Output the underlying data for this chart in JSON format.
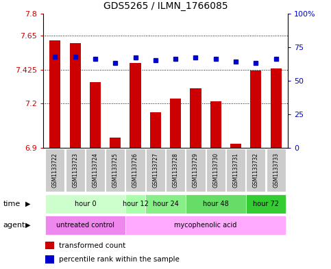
{
  "title": "GDS5265 / ILMN_1766085",
  "samples": [
    "GSM1133722",
    "GSM1133723",
    "GSM1133724",
    "GSM1133725",
    "GSM1133726",
    "GSM1133727",
    "GSM1133728",
    "GSM1133729",
    "GSM1133730",
    "GSM1133731",
    "GSM1133732",
    "GSM1133733"
  ],
  "red_values": [
    7.62,
    7.6,
    7.34,
    6.97,
    7.47,
    7.14,
    7.23,
    7.3,
    7.21,
    6.93,
    7.42,
    7.43
  ],
  "blue_values": [
    68,
    68,
    66,
    63,
    67,
    65,
    66,
    67,
    66,
    64,
    63,
    66
  ],
  "ylim_left": [
    6.9,
    7.8
  ],
  "ylim_right": [
    0,
    100
  ],
  "yticks_left": [
    6.9,
    7.2,
    7.425,
    7.65,
    7.8
  ],
  "ytick_labels_left": [
    "6.9",
    "7.2",
    "7.425",
    "7.65",
    "7.8"
  ],
  "yticks_right": [
    0,
    25,
    50,
    75,
    100
  ],
  "ytick_labels_right": [
    "0",
    "25",
    "50",
    "75",
    "100%"
  ],
  "hlines": [
    7.2,
    7.425,
    7.65
  ],
  "bar_color": "#cc0000",
  "dot_color": "#0000cc",
  "bar_bottom": 6.9,
  "time_groups": [
    {
      "label": "hour 0",
      "start": 0,
      "end": 3,
      "color": "#ccffcc"
    },
    {
      "label": "hour 12",
      "start": 4,
      "end": 4,
      "color": "#aaffaa"
    },
    {
      "label": "hour 24",
      "start": 5,
      "end": 6,
      "color": "#88ee88"
    },
    {
      "label": "hour 48",
      "start": 7,
      "end": 9,
      "color": "#66dd66"
    },
    {
      "label": "hour 72",
      "start": 10,
      "end": 11,
      "color": "#33cc33"
    }
  ],
  "agent_groups": [
    {
      "label": "untreated control",
      "start": 0,
      "end": 3,
      "color": "#ee88ee"
    },
    {
      "label": "mycophenolic acid",
      "start": 4,
      "end": 11,
      "color": "#ffaaff"
    }
  ],
  "legend_red": "transformed count",
  "legend_blue": "percentile rank within the sample",
  "xlabel_time": "time",
  "xlabel_agent": "agent",
  "title_fontsize": 10,
  "tick_fontsize": 8,
  "left_tick_color": "#cc0000",
  "right_tick_color": "#0000cc"
}
